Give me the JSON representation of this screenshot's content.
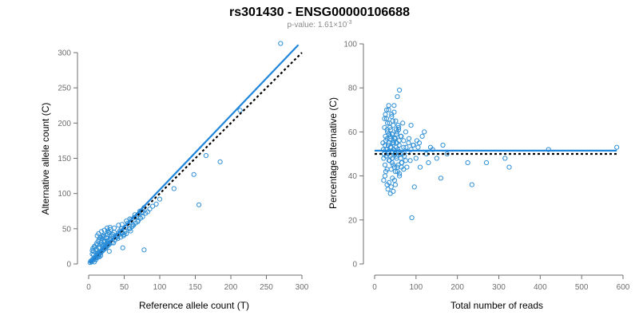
{
  "title": "rs301430 - ENSG00000106688",
  "subtitle": "p-value: 1.61×10",
  "subtitle_exp": "-3",
  "colors": {
    "points": "#2f8fd6",
    "fit": "#1f86dc",
    "reference": "#000000"
  },
  "chart_data": [
    {
      "type": "scatter",
      "xlabel": "Reference allele count (T)",
      "ylabel": "Alternative allele count (C)",
      "xlim": [
        0,
        300
      ],
      "ylim": [
        0,
        300
      ],
      "xticks": [
        0,
        50,
        100,
        150,
        200,
        250,
        300
      ],
      "yticks": [
        0,
        50,
        100,
        150,
        200,
        250,
        300
      ],
      "fit_line": {
        "x": [
          2,
          295
        ],
        "y": [
          2,
          311
        ]
      },
      "reference_line": {
        "x": [
          2,
          300
        ],
        "y": [
          2,
          300
        ]
      },
      "x": [
        2,
        3,
        4,
        5,
        6,
        7,
        8,
        9,
        10,
        11,
        12,
        13,
        14,
        15,
        16,
        17,
        18,
        19,
        20,
        21,
        22,
        23,
        24,
        25,
        26,
        27,
        28,
        29,
        30,
        5,
        7,
        9,
        11,
        13,
        15,
        17,
        19,
        21,
        23,
        25,
        27,
        29,
        8,
        10,
        12,
        14,
        16,
        18,
        20,
        22,
        24,
        26,
        28,
        30,
        32,
        34,
        36,
        38,
        40,
        42,
        44,
        46,
        48,
        50,
        52,
        55,
        58,
        60,
        62,
        65,
        68,
        70,
        72,
        75,
        78,
        12,
        14,
        16,
        18,
        20,
        22,
        24,
        26,
        28,
        30,
        6,
        8,
        10,
        12,
        14,
        16,
        18,
        20,
        22,
        24,
        26,
        28,
        31,
        33,
        35,
        37,
        39,
        41,
        43,
        45,
        47,
        49,
        51,
        53,
        57,
        59,
        61,
        63,
        66,
        69,
        73,
        76,
        80,
        83,
        86,
        90,
        95,
        100,
        120,
        148,
        155,
        165,
        185,
        213,
        270,
        78,
        48,
        35,
        29,
        25,
        22,
        19,
        17,
        15,
        13,
        11,
        9,
        7,
        5,
        27,
        31,
        36,
        42,
        47,
        53,
        58,
        64,
        70,
        76
      ],
      "y": [
        2,
        4,
        3,
        6,
        5,
        8,
        7,
        10,
        9,
        12,
        11,
        14,
        13,
        16,
        15,
        18,
        17,
        20,
        19,
        22,
        21,
        24,
        23,
        26,
        25,
        28,
        27,
        30,
        29,
        14,
        18,
        24,
        29,
        32,
        35,
        38,
        36,
        40,
        33,
        37,
        42,
        44,
        3,
        6,
        9,
        12,
        15,
        18,
        21,
        24,
        27,
        30,
        33,
        36,
        39,
        42,
        45,
        40,
        38,
        44,
        47,
        50,
        44,
        42,
        52,
        58,
        50,
        63,
        56,
        70,
        68,
        62,
        75,
        73,
        80,
        40,
        43,
        37,
        46,
        39,
        48,
        41,
        51,
        45,
        52,
        22,
        25,
        20,
        27,
        23,
        28,
        30,
        26,
        31,
        24,
        33,
        29,
        35,
        30,
        37,
        34,
        39,
        36,
        42,
        38,
        44,
        40,
        46,
        43,
        50,
        47,
        53,
        55,
        58,
        60,
        65,
        67,
        72,
        74,
        78,
        82,
        85,
        92,
        107,
        127,
        84,
        154,
        145,
        218,
        313,
        20,
        23,
        30,
        18,
        25,
        33,
        28,
        12,
        10,
        16,
        21,
        8,
        13,
        19,
        47,
        49,
        51,
        55,
        56,
        61,
        64,
        66,
        70,
        74
      ]
    },
    {
      "type": "scatter",
      "xlabel": "Total number of reads",
      "ylabel": "Percentage alternative (C)",
      "xlim": [
        0,
        600
      ],
      "ylim": [
        0,
        100
      ],
      "xticks": [
        0,
        100,
        200,
        300,
        400,
        500,
        600
      ],
      "yticks": [
        0,
        20,
        40,
        60,
        80,
        100
      ],
      "fit_line": {
        "x": [
          0,
          585
        ],
        "y": [
          51.5,
          51.5
        ]
      },
      "reference_line": {
        "x": [
          0,
          585
        ],
        "y": [
          50,
          50
        ]
      },
      "x": [
        20,
        22,
        24,
        25,
        26,
        28,
        29,
        30,
        31,
        32,
        33,
        34,
        35,
        36,
        37,
        38,
        39,
        40,
        41,
        42,
        43,
        44,
        45,
        46,
        47,
        48,
        49,
        50,
        51,
        52,
        53,
        54,
        55,
        56,
        57,
        58,
        59,
        60,
        62,
        64,
        66,
        68,
        70,
        72,
        75,
        78,
        80,
        83,
        86,
        88,
        90,
        93,
        96,
        100,
        105,
        110,
        115,
        120,
        125,
        130,
        135,
        140,
        150,
        160,
        165,
        175,
        225,
        235,
        270,
        315,
        325,
        420,
        585,
        22,
        25,
        27,
        30,
        32,
        35,
        38,
        40,
        43,
        45,
        48,
        50,
        55,
        60,
        65,
        24,
        26,
        29,
        31,
        34,
        37,
        41,
        44,
        47,
        52,
        57,
        21,
        23,
        28,
        33,
        36,
        39,
        42,
        46,
        49,
        53,
        58,
        63,
        68,
        25,
        27,
        30,
        34,
        38,
        42,
        46,
        50,
        54,
        59,
        64,
        70,
        76,
        82,
        88,
        94,
        102,
        108,
        30,
        35,
        40,
        45,
        50,
        55,
        60,
        65,
        70,
        75,
        28,
        33,
        38,
        43,
        48,
        53,
        58,
        63
      ],
      "y": [
        55,
        48,
        62,
        45,
        58,
        52,
        66,
        43,
        60,
        50,
        54,
        70,
        47,
        64,
        57,
        49,
        61,
        53,
        68,
        46,
        59,
        51,
        63,
        55,
        72,
        44,
        57,
        50,
        65,
        53,
        48,
        60,
        76,
        52,
        45,
        62,
        56,
        79,
        50,
        58,
        46,
        64,
        53,
        49,
        60,
        44,
        51,
        57,
        47,
        63,
        21,
        54,
        35,
        48,
        53,
        44,
        58,
        60,
        50,
        46,
        53,
        52,
        48,
        39,
        54,
        50,
        46,
        36,
        46,
        48,
        44,
        52,
        53,
        38,
        40,
        42,
        36,
        34,
        37,
        32,
        35,
        39,
        33,
        38,
        36,
        42,
        40,
        44,
        66,
        68,
        70,
        64,
        72,
        62,
        67,
        65,
        69,
        61,
        63,
        52,
        50,
        49,
        51,
        47,
        53,
        48,
        52,
        50,
        49,
        51,
        48,
        50,
        54,
        56,
        57,
        55,
        58,
        59,
        56,
        57,
        55,
        54,
        58,
        56,
        53,
        55,
        52,
        54,
        56,
        55,
        61,
        59,
        43,
        45,
        42,
        44,
        41,
        46,
        43,
        47,
        49,
        51,
        53,
        55,
        57,
        59,
        61,
        58
      ]
    }
  ]
}
